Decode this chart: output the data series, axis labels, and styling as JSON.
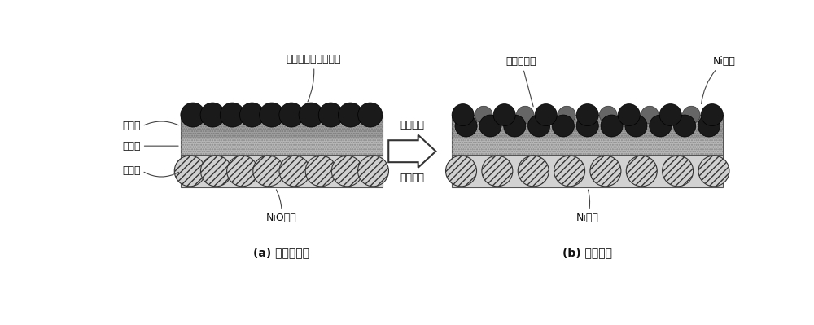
{
  "bg_color": "#ffffff",
  "fig_width": 10.0,
  "fig_height": 3.99,
  "labels": {
    "top_particle_a": "复合金属氧化物颗粒",
    "catalytic": "催化层",
    "transition": "过渡层",
    "reaction": "反应层",
    "nio": "NiO颗粒",
    "title_a": "(a) 未活化电极",
    "oxide_b": "氧化物颗粒",
    "ni_top_b": "Ni颗粒",
    "ni_bottom_b": "Ni颗粒",
    "title_b": "(b) 活化电极",
    "arrow_top": "电极活化",
    "arrow_bottom": "氢气还原"
  },
  "colors": {
    "dark_particle": "#1a1a1a",
    "dark_particle_edge": "#000000",
    "medium_particle": "#666666",
    "medium_particle_edge": "#333333",
    "nio_fill": "#cccccc",
    "nio_edge": "#444444",
    "cat_bg": "#aaaaaa",
    "tra_bg": "#cccccc",
    "rea_bg": "#bbbbbb",
    "layer_border": "#555555",
    "arrow_fill": "#ffffff",
    "arrow_edge": "#333333",
    "text_color": "#111111"
  }
}
